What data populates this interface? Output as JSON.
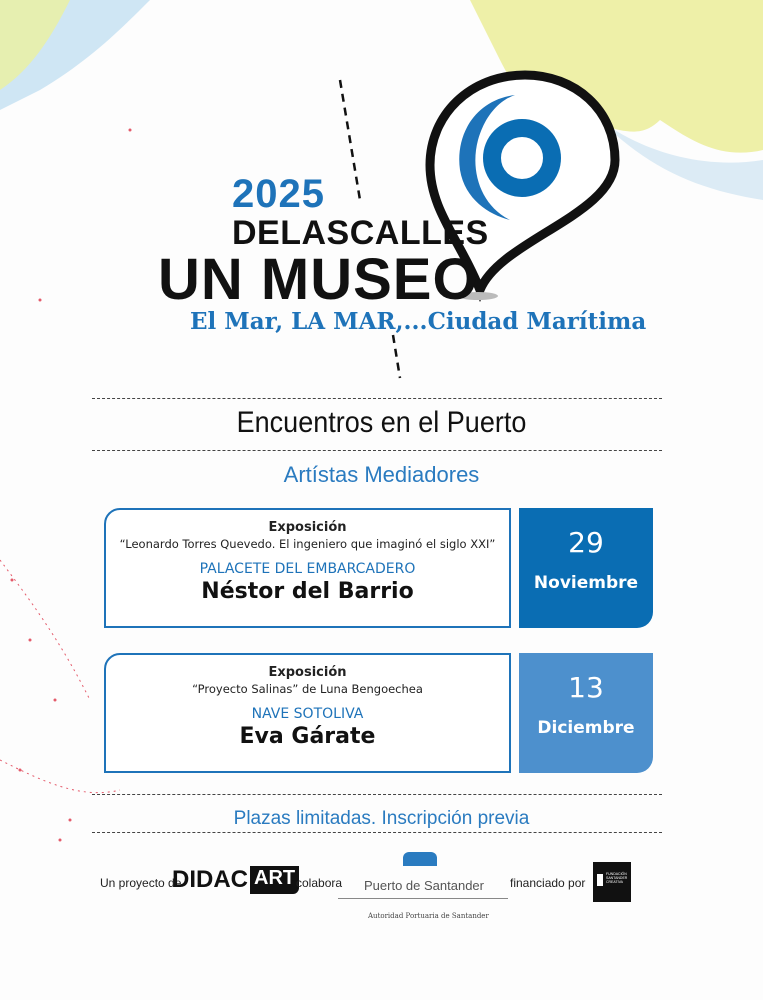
{
  "header": {
    "year": "2025",
    "line1": "DELASCALLES",
    "line2": "UN MUSEO",
    "subtitle": "El Mar, LA MAR,...Ciudad Marítima"
  },
  "section_title": "Encuentros en el Puerto",
  "section_subtitle": "Artístas Mediadores",
  "events": [
    {
      "type": "Exposición",
      "title": "“Leonardo Torres Quevedo. El ingeniero que imaginó el siglo XXI”",
      "place": "PALACETE DEL EMBARCADERO",
      "artist": "Néstor del Barrio",
      "day": "29",
      "month": "Noviembre",
      "color": "#0a6db3"
    },
    {
      "type": "Exposición",
      "title": "“Proyecto Salinas”  de  Luna Bengoechea",
      "place": "NAVE SOTOLIVA",
      "artist": "Eva Gárate",
      "day": "13",
      "month": "Diciembre",
      "color": "#4d90cd"
    }
  ],
  "notice": "Plazas limitadas. Inscripción previa",
  "footer": {
    "project_label": "Un proyecto de",
    "project_logo": "DIDACART",
    "collab_label": "colabora",
    "collab_name": "Puerto de Santander",
    "collab_sub": "Autoridad Portuaria de Santander",
    "funded_label": "financiado por",
    "funded_logo": "FUNDACIÓN SANTANDER CREATIVA"
  },
  "colors": {
    "accent": "#1e73b9",
    "land": "#eef0a8",
    "sea": "#cfe6f4"
  }
}
